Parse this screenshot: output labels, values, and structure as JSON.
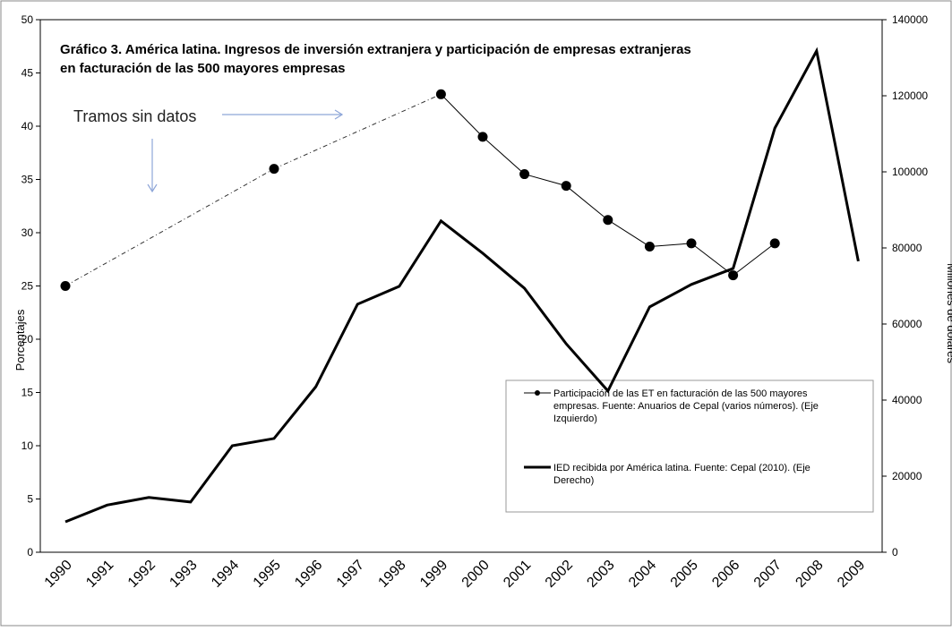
{
  "chart_data": {
    "type": "line",
    "title": "Gráfico 3. América latina. Ingresos de inversión extranjera y participación de empresas extranjeras",
    "subtitle": "en facturación de las 500 mayores empresas",
    "annotation": "Tramos sin datos",
    "y_label": "Porcentajes",
    "y2_label": "Millones de dólares",
    "categories": [
      "1990",
      "1991",
      "1992",
      "1993",
      "1994",
      "1995",
      "1996",
      "1997",
      "1998",
      "1999",
      "2000",
      "2001",
      "2002",
      "2003",
      "2004",
      "2005",
      "2006",
      "2007",
      "2008",
      "2009"
    ],
    "series": [
      {
        "name": "Participación de las ET en facturación de las 500 mayores empresas. Fuente: Anuarios de Cepal (varios números). (Eje Izquierdo)",
        "color": "#000000",
        "axis": "y",
        "values": [
          25,
          null,
          null,
          null,
          null,
          36,
          null,
          null,
          null,
          43,
          39,
          35.5,
          34.4,
          31.2,
          28.7,
          29,
          26,
          29,
          null,
          null
        ]
      },
      {
        "name": "IED recibida por América latina. Fuente: Cepal (2010). (Eje Derecho)",
        "color": "#000000",
        "axis": "y2",
        "values": [
          8000,
          12400,
          14400,
          13200,
          28000,
          29900,
          43500,
          65200,
          69900,
          87100,
          78600,
          69400,
          54800,
          42400,
          64500,
          70400,
          74600,
          111500,
          131800,
          76500
        ]
      }
    ],
    "ylim": [
      0,
      50
    ],
    "yticks": [
      0,
      5,
      10,
      15,
      20,
      25,
      30,
      35,
      40,
      45,
      50
    ],
    "y2lim": [
      0,
      140000
    ],
    "y2ticks": [
      0,
      20000,
      40000,
      60000,
      80000,
      100000,
      120000,
      140000
    ]
  }
}
